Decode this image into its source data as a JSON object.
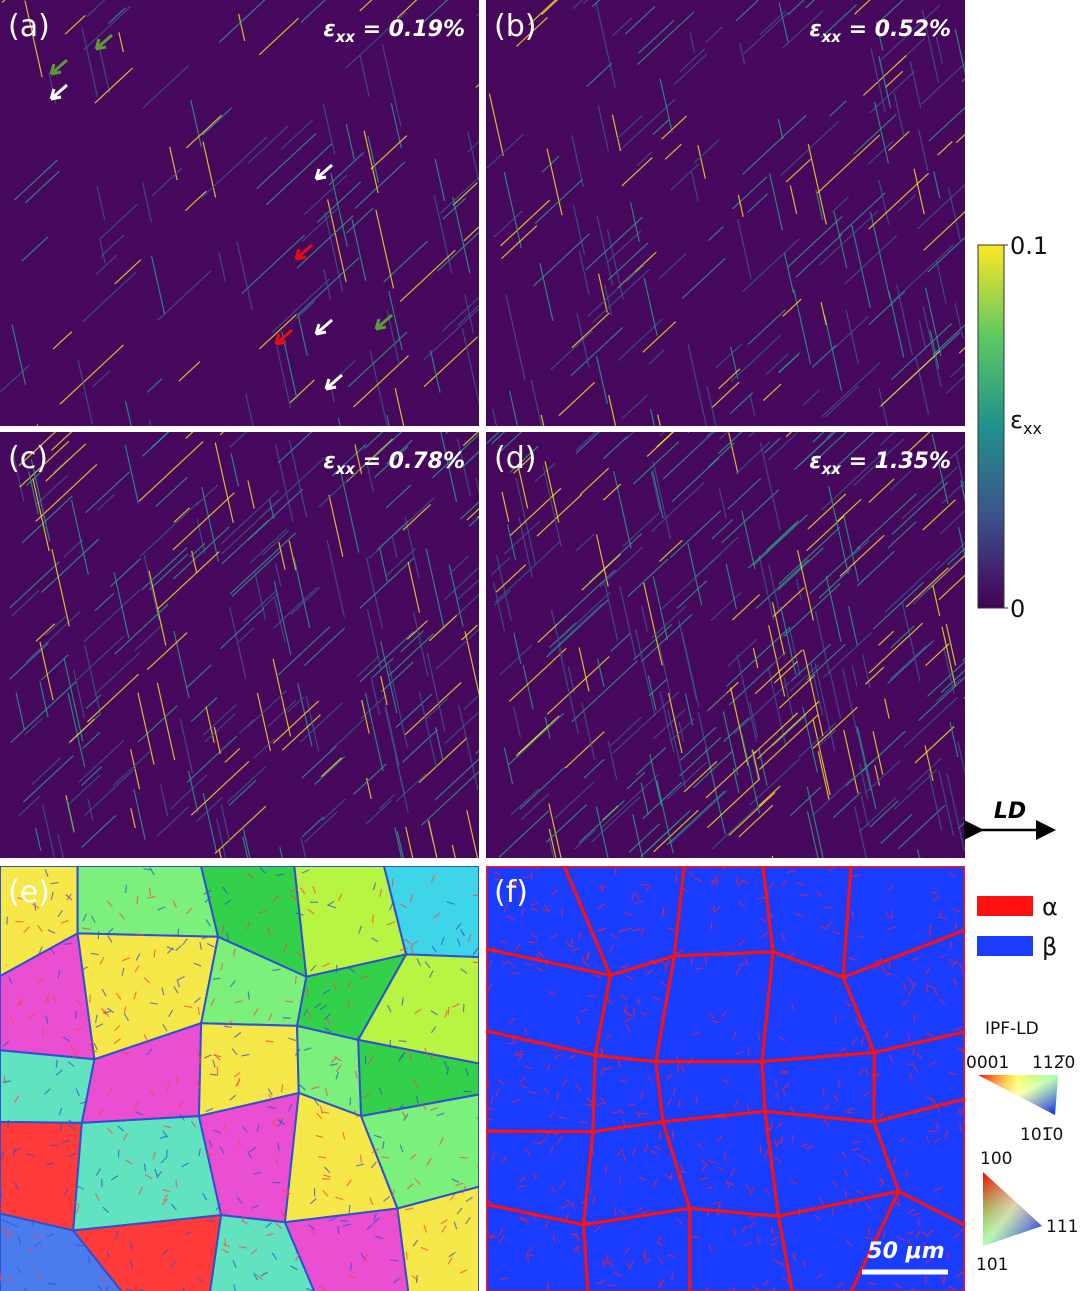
{
  "panels": [
    {
      "label": "(a)",
      "strain": {
        "symbol": "ε",
        "sub": "xx",
        "text": " = 0.19%"
      }
    },
    {
      "label": "(b)",
      "strain": {
        "symbol": "ε",
        "sub": "xx",
        "text": " = 0.52%"
      }
    },
    {
      "label": "(c)",
      "strain": {
        "symbol": "ε",
        "sub": "xx",
        "text": " = 0.78%"
      }
    },
    {
      "label": "(d)",
      "strain": {
        "symbol": "ε",
        "sub": "xx",
        "text": " = 1.35%"
      }
    },
    {
      "label": "(e)"
    },
    {
      "label": "(f)",
      "scale_bar": "50 μm"
    }
  ],
  "colorbar": {
    "symbol": "ε",
    "sub": "xx",
    "ticks": [
      0,
      0.1
    ]
  },
  "direction": "LD",
  "phase_legend": [
    {
      "name": "α",
      "color": "#ff1010"
    },
    {
      "name": "β",
      "color": "#1a3cff"
    }
  ],
  "ipf": {
    "title": "IPF-LD",
    "hcp": [
      "0001",
      "112̅0",
      "101̅0"
    ],
    "bcc": [
      "100",
      "111",
      "101"
    ]
  }
}
